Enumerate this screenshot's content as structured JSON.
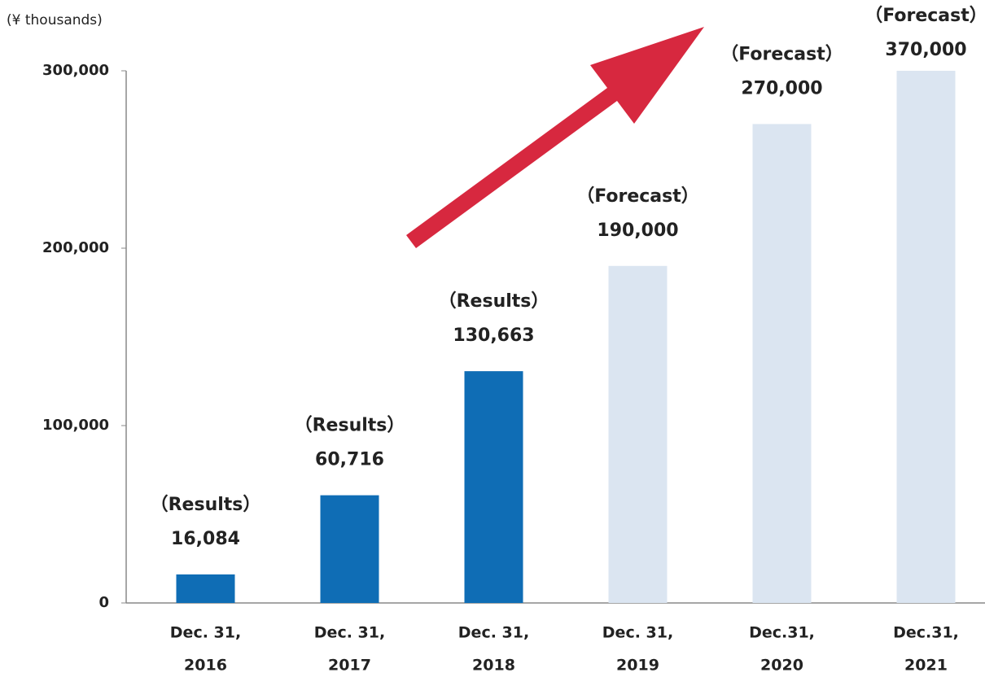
{
  "chart_data": {
    "type": "bar",
    "unit_label": "(¥ thousands)",
    "categories": [
      [
        "Dec. 31,",
        "2016"
      ],
      [
        "Dec. 31,",
        "2017"
      ],
      [
        "Dec. 31,",
        "2018"
      ],
      [
        "Dec. 31,",
        "2019"
      ],
      [
        "Dec.31,",
        "2020"
      ],
      [
        "Dec.31,",
        "2021"
      ]
    ],
    "values": [
      16084,
      60716,
      130663,
      190000,
      270000,
      370000
    ],
    "value_labels": [
      "16,084",
      "60,716",
      "130,663",
      "190,000",
      "270,000",
      "370,000"
    ],
    "status_labels": [
      "（Results）",
      "（Results）",
      "（Results）",
      "（Forecast）",
      "（Forecast）",
      "（Forecast）"
    ],
    "colors": [
      "#0f6db5",
      "#0f6db5",
      "#0f6db5",
      "#dbe5f1",
      "#dbe5f1",
      "#dbe5f1"
    ],
    "ylim": [
      0,
      300000
    ],
    "yticks": [
      {
        "value": 0,
        "label": "0"
      },
      {
        "value": 100000,
        "label": "100,000"
      },
      {
        "value": 200000,
        "label": "200,000"
      },
      {
        "value": 300000,
        "label": "300,000"
      }
    ],
    "grid": false
  }
}
